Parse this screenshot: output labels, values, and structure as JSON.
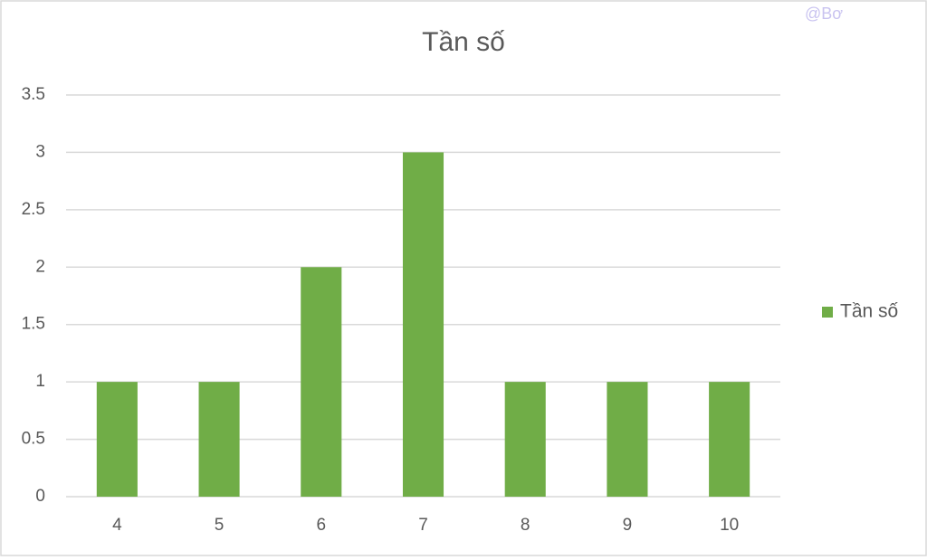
{
  "chart_data": {
    "type": "bar",
    "title": "Tần số",
    "categories": [
      "4",
      "5",
      "6",
      "7",
      "8",
      "9",
      "10"
    ],
    "series": [
      {
        "name": "Tần số",
        "color": "#70ad47",
        "values": [
          1,
          1,
          2,
          3,
          1,
          1,
          1
        ]
      }
    ],
    "ylim": [
      0,
      3.5
    ],
    "yticks": [
      0,
      0.5,
      1,
      1.5,
      2,
      2.5,
      3,
      3.5
    ],
    "grid": true,
    "legend": "right"
  },
  "watermark": "@Bơ"
}
